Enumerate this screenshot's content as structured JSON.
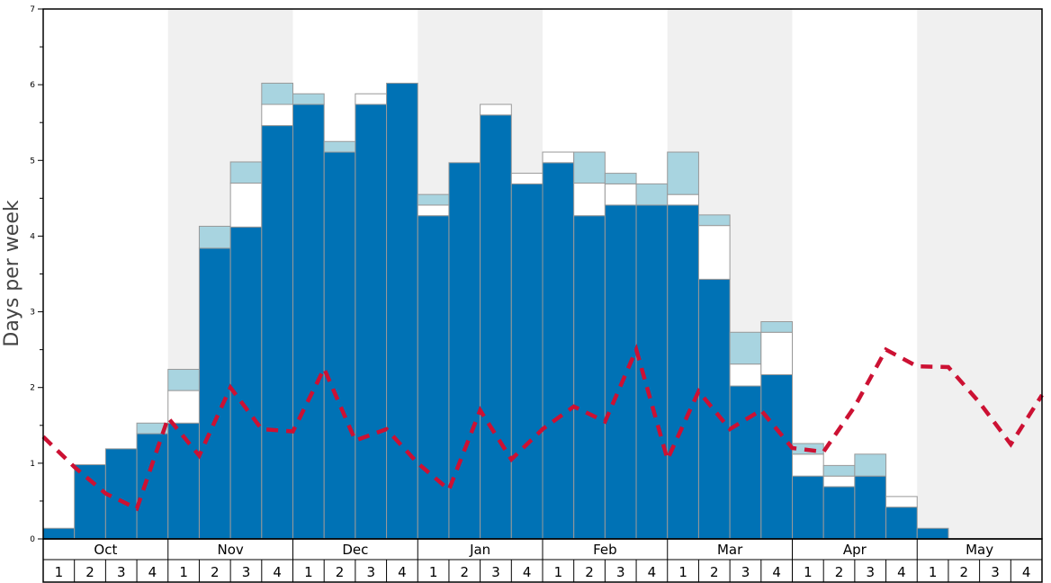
{
  "chart_data": {
    "type": "bar",
    "ylabel": "Days per week",
    "ylim": [
      0,
      7
    ],
    "yticks": [
      "0",
      "1",
      "2",
      "3",
      "4",
      "5",
      "6",
      "7"
    ],
    "months": [
      "Oct",
      "Nov",
      "Dec",
      "Jan",
      "Feb",
      "Mar",
      "Apr",
      "May"
    ],
    "weeks_per_month": [
      "1",
      "2",
      "3",
      "4"
    ],
    "stacked": true,
    "colors": {
      "base": "#0072b5",
      "white_band": "#ffffff",
      "light_band": "#a8d4e0",
      "trend": "#cc1133",
      "shade": "#f0f0f0"
    },
    "series": [
      {
        "values": [
          0.14,
          0.98,
          1.19,
          1.39,
          1.53,
          3.84,
          4.12,
          5.46,
          5.74,
          5.11,
          5.74,
          6.02,
          4.27,
          4.97,
          5.6,
          4.69,
          4.97,
          4.27,
          4.41,
          4.41,
          4.41,
          3.43,
          2.02,
          2.17,
          0.83,
          0.69,
          0.83,
          0.42,
          0.14,
          0,
          0,
          0
        ]
      },
      {
        "values": [
          0,
          0,
          0,
          0,
          0.43,
          0,
          0.58,
          0.28,
          0,
          0,
          0.14,
          0,
          0.14,
          0,
          0.14,
          0.14,
          0.14,
          0.43,
          0.28,
          0,
          0.14,
          0.71,
          0.29,
          0.56,
          0.29,
          0.14,
          0,
          0.14,
          0,
          0,
          0,
          0
        ]
      },
      {
        "values": [
          0,
          0,
          0,
          0.14,
          0.28,
          0.29,
          0.28,
          0.28,
          0.14,
          0.14,
          0,
          0,
          0.14,
          0,
          0,
          0,
          0,
          0.41,
          0.14,
          0.28,
          0.56,
          0.14,
          0.42,
          0.14,
          0.14,
          0.14,
          0.29,
          0,
          0,
          0,
          0,
          0
        ]
      },
      {
        "values": [
          1.35,
          0.95,
          0.6,
          0.4,
          1.6,
          1.1,
          2.0,
          1.45,
          1.42,
          2.25,
          1.3,
          1.45,
          1.0,
          0.65,
          1.7,
          1.05,
          1.45,
          1.75,
          1.55,
          2.5,
          1.05,
          1.95,
          1.45,
          1.7,
          1.2,
          1.15,
          1.75,
          2.5,
          2.28,
          2.27,
          1.8,
          1.25,
          1.9
        ]
      }
    ]
  }
}
